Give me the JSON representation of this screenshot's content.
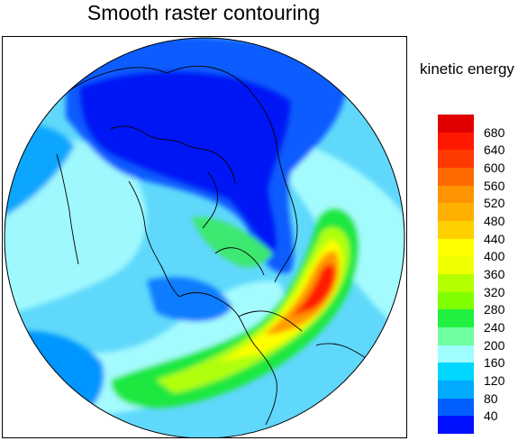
{
  "title": "Smooth raster contouring",
  "legend": {
    "title": "kinetic energy",
    "levels": [
      "40",
      "80",
      "120",
      "160",
      "200",
      "240",
      "280",
      "320",
      "360",
      "400",
      "440",
      "480",
      "520",
      "560",
      "600",
      "640",
      "680"
    ],
    "colors": [
      "#0010ff",
      "#0060ff",
      "#00aaff",
      "#00d6ff",
      "#a0fdfe",
      "#70ffa0",
      "#20f040",
      "#80ff00",
      "#b4ff00",
      "#f0ff00",
      "#ffff00",
      "#ffd000",
      "#ffb000",
      "#ff9400",
      "#ff6a00",
      "#ff3a00",
      "#ff1800",
      "#e00000"
    ]
  },
  "map": {
    "projection": "orthographic",
    "field": "kinetic energy",
    "fill_colors": {
      "ocean_base": "#a6fbfd",
      "polar_low": "#0022e6",
      "jet_max": "#ff1a00"
    }
  }
}
